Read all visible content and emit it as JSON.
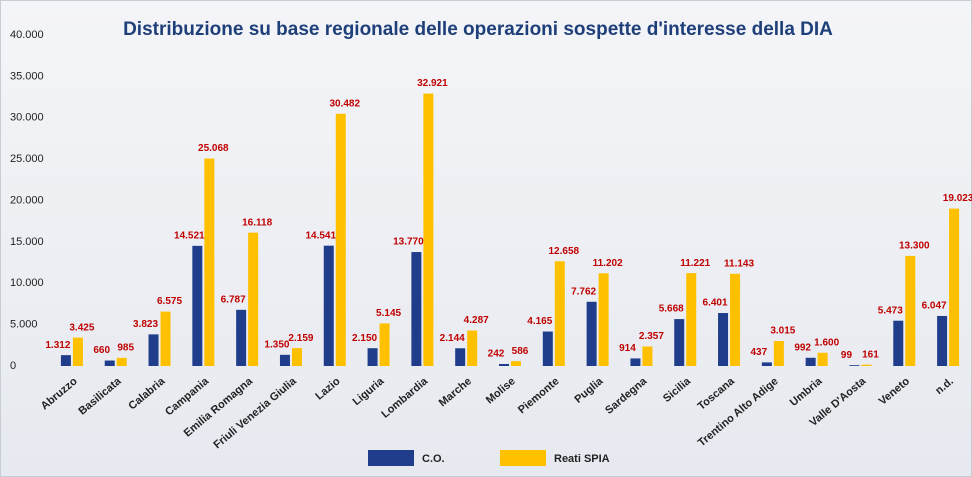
{
  "chart_data": {
    "type": "bar",
    "title": "Distribuzione su base regionale delle operazioni sospette d'interesse della DIA",
    "categories": [
      "Abruzzo",
      "Basilicata",
      "Calabria",
      "Campania",
      "Emilia Romagna",
      "Friuli Venezia Giulia",
      "Lazio",
      "Liguria",
      "Lombardia",
      "Marche",
      "Molise",
      "Piemonte",
      "Puglia",
      "Sardegna",
      "Sicilia",
      "Toscana",
      "Trentino Alto Adige",
      "Umbria",
      "Valle D'Aosta",
      "Veneto",
      "n.d."
    ],
    "series": [
      {
        "name": "C.O.",
        "color": "#1f3d8a",
        "values": [
          1312,
          660,
          3823,
          14521,
          6787,
          1350,
          14541,
          2150,
          13770,
          2144,
          242,
          4165,
          7762,
          914,
          5668,
          6401,
          437,
          992,
          99,
          5473,
          6047
        ],
        "value_labels": [
          "1.312",
          "660",
          "3.823",
          "14.521",
          "6.787",
          "1.350",
          "14.541",
          "2.150",
          "13.770",
          "2.144",
          "242",
          "4.165",
          "7.762",
          "914",
          "5.668",
          "6.401",
          "437",
          "992",
          "99",
          "5.473",
          "6.047"
        ]
      },
      {
        "name": "Reati SPIA",
        "color": "#ffc000",
        "values": [
          3425,
          985,
          6575,
          25068,
          16118,
          2159,
          30482,
          5145,
          32921,
          4287,
          586,
          12658,
          11202,
          2357,
          11221,
          11143,
          3015,
          1600,
          161,
          13300,
          19023
        ],
        "value_labels": [
          "3.425",
          "985",
          "6.575",
          "25.068",
          "16.118",
          "2.159",
          "30.482",
          "5.145",
          "32.921",
          "4.287",
          "586",
          "12.658",
          "11.202",
          "2.357",
          "11.221",
          "11.143",
          "3.015",
          "1.600",
          "161",
          "13.300",
          "19.023"
        ]
      }
    ],
    "ylim": [
      0,
      40000
    ],
    "yticks": [
      0,
      {
        "value": 5000,
        "label": "5.000"
      },
      {
        "value": 10000,
        "label": "10.000"
      },
      {
        "value": 15000,
        "label": "15.000"
      },
      {
        "value": 20000,
        "label": "20.000"
      },
      {
        "value": 25000,
        "label": "25.000"
      },
      {
        "value": 30000,
        "label": "30.000"
      },
      {
        "value": 35000,
        "label": "35.000"
      },
      {
        "value": 40000,
        "label": "40.000"
      }
    ],
    "grid": false
  }
}
